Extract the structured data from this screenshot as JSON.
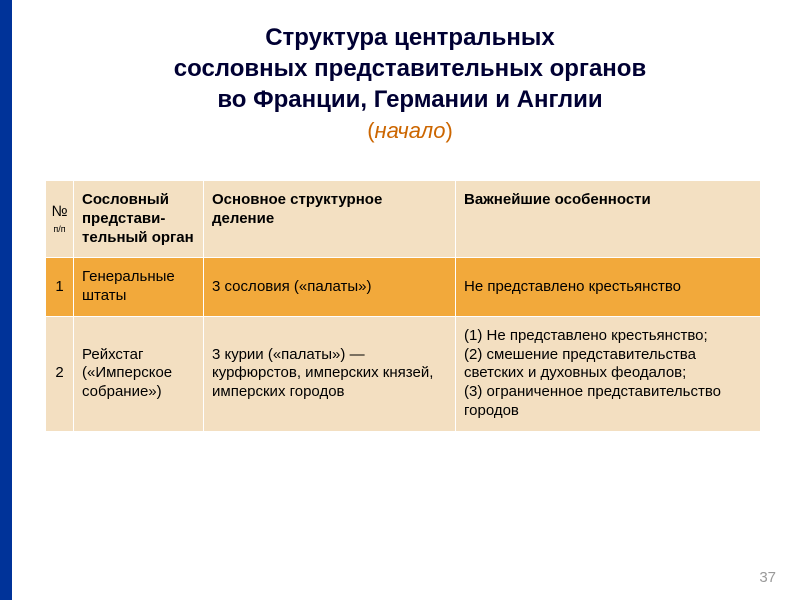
{
  "colors": {
    "stripe": "#003399",
    "title_text": "#000033",
    "accent": "#cc6600",
    "header_bg": "#f3e0c2",
    "row1_bg": "#f2a93b",
    "row2_bg": "#f3dfc1",
    "border": "#ffffff",
    "pagenum": "#9a9a9a"
  },
  "title": {
    "line1": "Структура центральных",
    "line2": "сословных представительных органов",
    "line3": "во Франции, Германии и Англии",
    "start_open": "(",
    "start_word": "начало",
    "start_close": ")"
  },
  "table": {
    "columns": {
      "num_main": "№",
      "num_sub": "п/п",
      "body": "Сословный представи-тельный орган",
      "struct": "Основное структурное деление",
      "feat": "Важнейшие особенности"
    },
    "rows": [
      {
        "num": "1",
        "body": "Генеральные штаты",
        "struct": "3 сословия («палаты»)",
        "feat": "Не представлено крестьянство"
      },
      {
        "num": "2",
        "body": "Рейхстаг («Имперское собрание»)",
        "struct": "3 курии («палаты») — курфюрстов, имперских князей, имперских городов",
        "feat": "(1) Не представлено крестьянство;\n(2) смешение представительства светских и духовных феодалов;\n(3) ограниченное представительство городов"
      }
    ]
  },
  "page_number": "37"
}
